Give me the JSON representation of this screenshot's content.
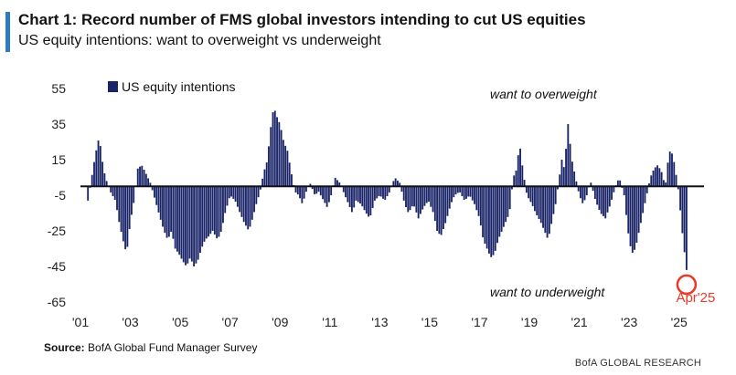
{
  "header": {
    "title": "Chart 1: Record number of FMS global investors intending to cut US equities",
    "subtitle": "US equity intentions: want to overweight vs underweight"
  },
  "footer": {
    "source_label": "Source:",
    "source_text": "BofA Global Fund Manager Survey",
    "brand": "BofA GLOBAL RESEARCH"
  },
  "colors": {
    "bar": "#1a2468",
    "accent": "#2d7bc0",
    "highlight": "#e8392a",
    "zero_line": "#888888"
  },
  "chart_data": {
    "type": "bar",
    "title": "Chart 1: Record number of FMS global investors intending to cut US equities",
    "subtitle": "US equity intentions: want to overweight vs underweight",
    "legend": {
      "label": "US equity intentions",
      "placement": "top-left"
    },
    "ylim": [
      -65,
      55
    ],
    "yticks": [
      55,
      35,
      15,
      -5,
      -25,
      -45,
      -65
    ],
    "xlim": [
      2001.0,
      2026.0
    ],
    "xticks": [
      {
        "label": "'01",
        "value": 2001
      },
      {
        "label": "'03",
        "value": 2003
      },
      {
        "label": "'05",
        "value": 2005
      },
      {
        "label": "'07",
        "value": 2007
      },
      {
        "label": "'09",
        "value": 2009
      },
      {
        "label": "'11",
        "value": 2011
      },
      {
        "label": "'13",
        "value": 2013
      },
      {
        "label": "'15",
        "value": 2015
      },
      {
        "label": "'17",
        "value": 2017
      },
      {
        "label": "'19",
        "value": 2019
      },
      {
        "label": "'21",
        "value": 2021
      },
      {
        "label": "'23",
        "value": 2023
      },
      {
        "label": "'25",
        "value": 2025
      }
    ],
    "annotations": {
      "overweight": "want to overweight",
      "underweight": "want to underweight",
      "highlight_label": "Apr'25"
    },
    "highlight": {
      "label": "Apr'25",
      "value": -47
    },
    "series": [
      {
        "name": "US equity intentions",
        "anchors": [
          [
            2001.3,
            -8
          ],
          [
            2001.45,
            5
          ],
          [
            2001.6,
            18
          ],
          [
            2001.75,
            28
          ],
          [
            2001.9,
            12
          ],
          [
            2002.0,
            5
          ],
          [
            2002.2,
            -3
          ],
          [
            2002.4,
            -8
          ],
          [
            2002.55,
            -20
          ],
          [
            2002.7,
            -30
          ],
          [
            2002.85,
            -38
          ],
          [
            2003.0,
            -20
          ],
          [
            2003.15,
            -8
          ],
          [
            2003.3,
            10
          ],
          [
            2003.45,
            12
          ],
          [
            2003.6,
            8
          ],
          [
            2003.8,
            2
          ],
          [
            2004.0,
            -8
          ],
          [
            2004.2,
            -18
          ],
          [
            2004.35,
            -25
          ],
          [
            2004.5,
            -30
          ],
          [
            2004.65,
            -25
          ],
          [
            2004.8,
            -35
          ],
          [
            2004.95,
            -38
          ],
          [
            2005.1,
            -42
          ],
          [
            2005.25,
            -45
          ],
          [
            2005.4,
            -40
          ],
          [
            2005.55,
            -45
          ],
          [
            2005.7,
            -42
          ],
          [
            2005.85,
            -35
          ],
          [
            2006.0,
            -30
          ],
          [
            2006.15,
            -28
          ],
          [
            2006.3,
            -25
          ],
          [
            2006.5,
            -30
          ],
          [
            2006.65,
            -25
          ],
          [
            2006.8,
            -15
          ],
          [
            2007.0,
            -5
          ],
          [
            2007.2,
            -8
          ],
          [
            2007.4,
            -15
          ],
          [
            2007.55,
            -20
          ],
          [
            2007.75,
            -25
          ],
          [
            2007.9,
            -18
          ],
          [
            2008.05,
            -10
          ],
          [
            2008.2,
            -3
          ],
          [
            2008.35,
            8
          ],
          [
            2008.5,
            15
          ],
          [
            2008.6,
            30
          ],
          [
            2008.75,
            45
          ],
          [
            2008.85,
            40
          ],
          [
            2009.0,
            35
          ],
          [
            2009.15,
            25
          ],
          [
            2009.3,
            20
          ],
          [
            2009.45,
            8
          ],
          [
            2009.6,
            -3
          ],
          [
            2009.75,
            -5
          ],
          [
            2009.9,
            -10
          ],
          [
            2010.05,
            -3
          ],
          [
            2010.2,
            2
          ],
          [
            2010.4,
            -5
          ],
          [
            2010.55,
            -3
          ],
          [
            2010.75,
            -8
          ],
          [
            2010.9,
            -12
          ],
          [
            2011.05,
            -5
          ],
          [
            2011.2,
            5
          ],
          [
            2011.4,
            2
          ],
          [
            2011.6,
            -5
          ],
          [
            2011.75,
            -10
          ],
          [
            2011.9,
            -15
          ],
          [
            2012.05,
            -8
          ],
          [
            2012.25,
            -10
          ],
          [
            2012.45,
            -15
          ],
          [
            2012.6,
            -18
          ],
          [
            2012.8,
            -8
          ],
          [
            2013.0,
            -5
          ],
          [
            2013.2,
            -8
          ],
          [
            2013.4,
            -3
          ],
          [
            2013.6,
            5
          ],
          [
            2013.8,
            2
          ],
          [
            2014.0,
            -10
          ],
          [
            2014.15,
            -15
          ],
          [
            2014.35,
            -10
          ],
          [
            2014.55,
            -18
          ],
          [
            2014.75,
            -12
          ],
          [
            2014.95,
            -8
          ],
          [
            2015.15,
            -15
          ],
          [
            2015.3,
            -25
          ],
          [
            2015.45,
            -28
          ],
          [
            2015.65,
            -20
          ],
          [
            2015.85,
            -10
          ],
          [
            2016.0,
            -5
          ],
          [
            2016.2,
            -3
          ],
          [
            2016.4,
            -8
          ],
          [
            2016.6,
            -5
          ],
          [
            2016.8,
            -10
          ],
          [
            2017.0,
            -18
          ],
          [
            2017.15,
            -30
          ],
          [
            2017.3,
            -35
          ],
          [
            2017.45,
            -40
          ],
          [
            2017.6,
            -38
          ],
          [
            2017.75,
            -30
          ],
          [
            2017.9,
            -25
          ],
          [
            2018.05,
            -20
          ],
          [
            2018.2,
            -15
          ],
          [
            2018.35,
            5
          ],
          [
            2018.5,
            10
          ],
          [
            2018.6,
            25
          ],
          [
            2018.75,
            8
          ],
          [
            2018.9,
            -5
          ],
          [
            2019.1,
            -10
          ],
          [
            2019.25,
            -15
          ],
          [
            2019.45,
            -20
          ],
          [
            2019.6,
            -25
          ],
          [
            2019.75,
            -30
          ],
          [
            2019.9,
            -20
          ],
          [
            2020.05,
            -10
          ],
          [
            2020.2,
            5
          ],
          [
            2020.3,
            15
          ],
          [
            2020.4,
            10
          ],
          [
            2020.55,
            35
          ],
          [
            2020.7,
            15
          ],
          [
            2020.85,
            5
          ],
          [
            2021.0,
            -5
          ],
          [
            2021.15,
            -10
          ],
          [
            2021.3,
            -5
          ],
          [
            2021.45,
            3
          ],
          [
            2021.65,
            -8
          ],
          [
            2021.85,
            -15
          ],
          [
            2022.05,
            -18
          ],
          [
            2022.25,
            -10
          ],
          [
            2022.45,
            0
          ],
          [
            2022.6,
            5
          ],
          [
            2022.8,
            -5
          ],
          [
            2022.95,
            -25
          ],
          [
            2023.1,
            -38
          ],
          [
            2023.25,
            -35
          ],
          [
            2023.4,
            -25
          ],
          [
            2023.55,
            -15
          ],
          [
            2023.7,
            -5
          ],
          [
            2023.85,
            5
          ],
          [
            2024.0,
            10
          ],
          [
            2024.15,
            12
          ],
          [
            2024.3,
            8
          ],
          [
            2024.45,
            0
          ],
          [
            2024.6,
            20
          ],
          [
            2024.75,
            18
          ],
          [
            2024.9,
            5
          ],
          [
            2025.0,
            -5
          ],
          [
            2025.1,
            -22
          ],
          [
            2025.2,
            -35
          ],
          [
            2025.3,
            -47
          ]
        ]
      }
    ]
  }
}
